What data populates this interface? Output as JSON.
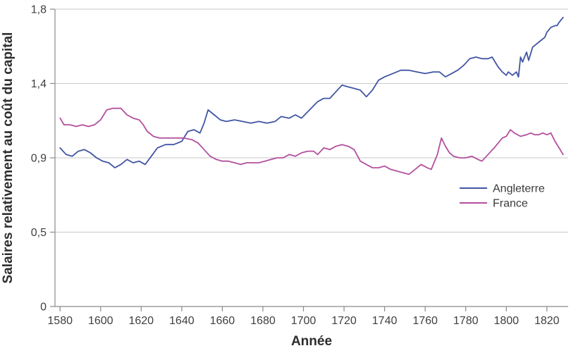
{
  "chart_data": {
    "type": "line",
    "title": "",
    "xlabel": "Année",
    "ylabel": "Salaires relativement au coût du capital",
    "x_range": [
      1577.5,
      1830.5
    ],
    "ylim": [
      0,
      1.8
    ],
    "grid": "horizontal",
    "legend_position": "right-middle",
    "axis_color": "#8a8a8a",
    "gridline_color": "#c9c9c9",
    "tick_label_color": "#3f3f3f",
    "x_ticks": [
      {
        "label": "1580",
        "value": 1580
      },
      {
        "label": "1600",
        "value": 1600
      },
      {
        "label": "1620",
        "value": 1620
      },
      {
        "label": "1640",
        "value": 1640
      },
      {
        "label": "1660",
        "value": 1660
      },
      {
        "label": "1680",
        "value": 1680
      },
      {
        "label": "1700",
        "value": 1700
      },
      {
        "label": "1720",
        "value": 1720
      },
      {
        "label": "1740",
        "value": 1740
      },
      {
        "label": "1760",
        "value": 1760
      },
      {
        "label": "1780",
        "value": 1780
      },
      {
        "label": "1800",
        "value": 1800
      },
      {
        "label": "1820",
        "value": 1820
      }
    ],
    "y_ticks": [
      {
        "label": "0",
        "value": 0
      },
      {
        "label": "0,5",
        "value": 0.45
      },
      {
        "label": "0,9",
        "value": 0.9
      },
      {
        "label": "1,4",
        "value": 1.35
      },
      {
        "label": "1,8",
        "value": 1.8
      }
    ],
    "series": [
      {
        "name": "Angleterre",
        "color": "#4155a4",
        "points": [
          [
            1580,
            0.96
          ],
          [
            1583,
            0.92
          ],
          [
            1586,
            0.91
          ],
          [
            1589,
            0.94
          ],
          [
            1592,
            0.95
          ],
          [
            1595,
            0.93
          ],
          [
            1598,
            0.9
          ],
          [
            1601,
            0.88
          ],
          [
            1604,
            0.87
          ],
          [
            1607,
            0.84
          ],
          [
            1610,
            0.86
          ],
          [
            1613,
            0.89
          ],
          [
            1616,
            0.87
          ],
          [
            1619,
            0.88
          ],
          [
            1622,
            0.86
          ],
          [
            1625,
            0.91
          ],
          [
            1628,
            0.96
          ],
          [
            1632,
            0.98
          ],
          [
            1636,
            0.98
          ],
          [
            1640,
            1.0
          ],
          [
            1643,
            1.06
          ],
          [
            1646,
            1.07
          ],
          [
            1649,
            1.05
          ],
          [
            1651,
            1.11
          ],
          [
            1653,
            1.19
          ],
          [
            1656,
            1.16
          ],
          [
            1659,
            1.13
          ],
          [
            1662,
            1.12
          ],
          [
            1666,
            1.13
          ],
          [
            1670,
            1.12
          ],
          [
            1674,
            1.11
          ],
          [
            1678,
            1.12
          ],
          [
            1682,
            1.11
          ],
          [
            1686,
            1.12
          ],
          [
            1689,
            1.15
          ],
          [
            1693,
            1.14
          ],
          [
            1696,
            1.16
          ],
          [
            1699,
            1.14
          ],
          [
            1703,
            1.19
          ],
          [
            1707,
            1.24
          ],
          [
            1710,
            1.26
          ],
          [
            1713,
            1.26
          ],
          [
            1716,
            1.3
          ],
          [
            1719,
            1.34
          ],
          [
            1722,
            1.33
          ],
          [
            1725,
            1.32
          ],
          [
            1728,
            1.31
          ],
          [
            1731,
            1.27
          ],
          [
            1734,
            1.31
          ],
          [
            1737,
            1.37
          ],
          [
            1740,
            1.39
          ],
          [
            1744,
            1.41
          ],
          [
            1748,
            1.43
          ],
          [
            1752,
            1.43
          ],
          [
            1756,
            1.42
          ],
          [
            1760,
            1.41
          ],
          [
            1764,
            1.42
          ],
          [
            1767,
            1.42
          ],
          [
            1770,
            1.39
          ],
          [
            1773,
            1.41
          ],
          [
            1776,
            1.43
          ],
          [
            1779,
            1.46
          ],
          [
            1782,
            1.5
          ],
          [
            1785,
            1.51
          ],
          [
            1788,
            1.5
          ],
          [
            1791,
            1.5
          ],
          [
            1793,
            1.51
          ],
          [
            1796,
            1.45
          ],
          [
            1798,
            1.42
          ],
          [
            1800,
            1.4
          ],
          [
            1801,
            1.42
          ],
          [
            1803,
            1.4
          ],
          [
            1805,
            1.42
          ],
          [
            1806,
            1.39
          ],
          [
            1807,
            1.51
          ],
          [
            1808,
            1.48
          ],
          [
            1810,
            1.54
          ],
          [
            1811,
            1.49
          ],
          [
            1813,
            1.57
          ],
          [
            1815,
            1.59
          ],
          [
            1817,
            1.61
          ],
          [
            1819,
            1.63
          ],
          [
            1820,
            1.66
          ],
          [
            1822,
            1.69
          ],
          [
            1824,
            1.7
          ],
          [
            1825,
            1.7
          ],
          [
            1826,
            1.72
          ],
          [
            1828,
            1.75
          ]
        ]
      },
      {
        "name": "France",
        "color": "#b3509e",
        "points": [
          [
            1580,
            1.14
          ],
          [
            1582,
            1.1
          ],
          [
            1585,
            1.1
          ],
          [
            1588,
            1.09
          ],
          [
            1591,
            1.1
          ],
          [
            1594,
            1.09
          ],
          [
            1597,
            1.1
          ],
          [
            1600,
            1.13
          ],
          [
            1603,
            1.19
          ],
          [
            1606,
            1.2
          ],
          [
            1610,
            1.2
          ],
          [
            1613,
            1.16
          ],
          [
            1616,
            1.14
          ],
          [
            1619,
            1.13
          ],
          [
            1621,
            1.1
          ],
          [
            1623,
            1.06
          ],
          [
            1626,
            1.03
          ],
          [
            1629,
            1.02
          ],
          [
            1633,
            1.02
          ],
          [
            1637,
            1.02
          ],
          [
            1641,
            1.02
          ],
          [
            1645,
            1.01
          ],
          [
            1648,
            0.99
          ],
          [
            1651,
            0.95
          ],
          [
            1654,
            0.91
          ],
          [
            1657,
            0.89
          ],
          [
            1660,
            0.88
          ],
          [
            1663,
            0.88
          ],
          [
            1666,
            0.87
          ],
          [
            1669,
            0.86
          ],
          [
            1672,
            0.87
          ],
          [
            1675,
            0.87
          ],
          [
            1678,
            0.87
          ],
          [
            1681,
            0.88
          ],
          [
            1684,
            0.89
          ],
          [
            1687,
            0.9
          ],
          [
            1690,
            0.9
          ],
          [
            1693,
            0.92
          ],
          [
            1696,
            0.91
          ],
          [
            1699,
            0.93
          ],
          [
            1702,
            0.94
          ],
          [
            1705,
            0.94
          ],
          [
            1707,
            0.92
          ],
          [
            1710,
            0.96
          ],
          [
            1713,
            0.95
          ],
          [
            1716,
            0.97
          ],
          [
            1719,
            0.98
          ],
          [
            1722,
            0.97
          ],
          [
            1725,
            0.95
          ],
          [
            1728,
            0.88
          ],
          [
            1731,
            0.86
          ],
          [
            1734,
            0.84
          ],
          [
            1737,
            0.84
          ],
          [
            1740,
            0.85
          ],
          [
            1743,
            0.83
          ],
          [
            1746,
            0.82
          ],
          [
            1749,
            0.81
          ],
          [
            1752,
            0.8
          ],
          [
            1755,
            0.83
          ],
          [
            1758,
            0.86
          ],
          [
            1761,
            0.84
          ],
          [
            1763,
            0.83
          ],
          [
            1766,
            0.92
          ],
          [
            1768,
            1.02
          ],
          [
            1770,
            0.97
          ],
          [
            1772,
            0.93
          ],
          [
            1774,
            0.91
          ],
          [
            1777,
            0.9
          ],
          [
            1780,
            0.9
          ],
          [
            1783,
            0.91
          ],
          [
            1786,
            0.89
          ],
          [
            1788,
            0.88
          ],
          [
            1791,
            0.92
          ],
          [
            1794,
            0.96
          ],
          [
            1798,
            1.02
          ],
          [
            1800,
            1.03
          ],
          [
            1802,
            1.07
          ],
          [
            1804,
            1.05
          ],
          [
            1807,
            1.03
          ],
          [
            1810,
            1.04
          ],
          [
            1812,
            1.05
          ],
          [
            1814,
            1.04
          ],
          [
            1816,
            1.04
          ],
          [
            1818,
            1.05
          ],
          [
            1820,
            1.04
          ],
          [
            1822,
            1.05
          ],
          [
            1824,
            1.0
          ],
          [
            1826,
            0.96
          ],
          [
            1828,
            0.92
          ]
        ]
      }
    ]
  }
}
